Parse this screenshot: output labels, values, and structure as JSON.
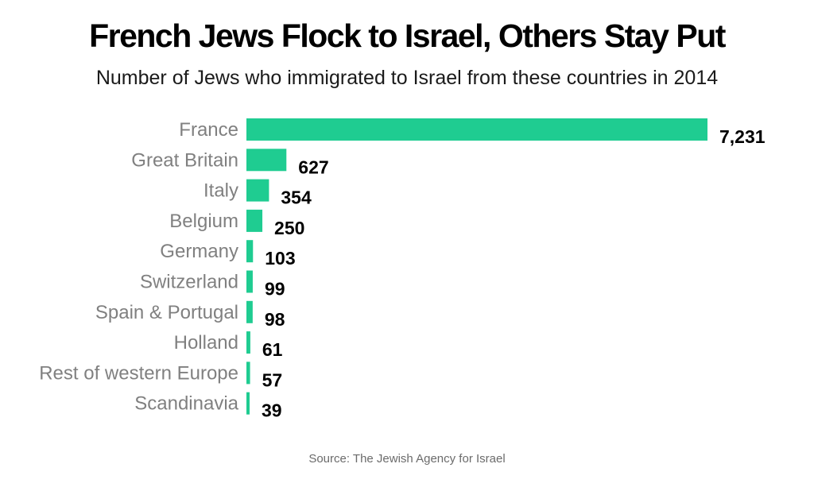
{
  "chart_data": {
    "type": "bar",
    "orientation": "horizontal",
    "title": "French Jews Flock to Israel, Others Stay Put",
    "subtitle": "Number of Jews who immigrated to Israel from these countries in 2014",
    "categories": [
      "France",
      "Great Britain",
      "Italy",
      "Belgium",
      "Germany",
      "Switzerland",
      "Spain & Portugal",
      "Holland",
      "Rest of western Europe",
      "Scandinavia"
    ],
    "values": [
      7231,
      627,
      354,
      250,
      103,
      99,
      98,
      61,
      57,
      39
    ],
    "value_labels": [
      "7,231",
      "627",
      "354",
      "250",
      "103",
      "99",
      "98",
      "61",
      "57",
      "39"
    ],
    "xlim": [
      0,
      7231
    ],
    "grid": false,
    "legend": "none",
    "bar_color": "#1fcc91",
    "source": "Source: The Jewish Agency for Israel"
  }
}
